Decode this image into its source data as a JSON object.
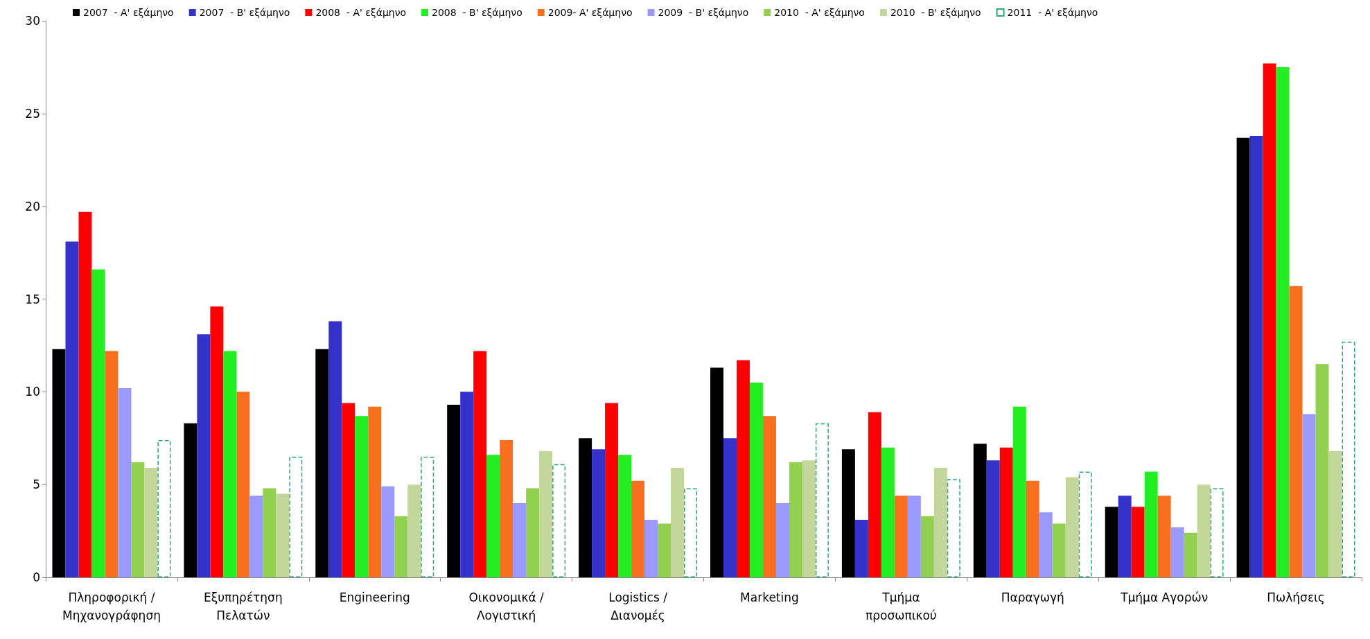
{
  "chart_data": {
    "type": "bar",
    "categories": [
      "Πληροφορική / Μηχανογράφηση",
      "Εξυπηρέτηση Πελατών",
      "Engineering",
      "Οικονομικά / Λογιστική",
      "Logistics / Διανομές",
      "Marketing",
      "Τμήμα προσωπικού",
      "Παραγωγή",
      "Τμήμα Αγορών",
      "Πωλήσεις"
    ],
    "series": [
      {
        "name": "2007  - Α' εξάμηνο",
        "color": "#000000",
        "values": [
          12.3,
          8.3,
          12.3,
          9.3,
          7.5,
          11.3,
          6.9,
          7.2,
          3.8,
          23.7
        ]
      },
      {
        "name": "2007  - Β' εξάμηνο",
        "color": "#3333cc",
        "values": [
          18.1,
          13.1,
          13.8,
          10.0,
          6.9,
          7.5,
          3.1,
          6.3,
          4.4,
          23.8
        ]
      },
      {
        "name": "2008  - Α' εξάμηνο",
        "color": "#ff0000",
        "values": [
          19.7,
          14.6,
          9.4,
          12.2,
          9.4,
          11.7,
          8.9,
          7.0,
          3.8,
          27.7
        ]
      },
      {
        "name": "2008  - Β' εξάμηνο",
        "color": "#22ee22",
        "values": [
          16.6,
          12.2,
          8.7,
          6.6,
          6.6,
          10.5,
          7.0,
          9.2,
          5.7,
          27.5
        ]
      },
      {
        "name": "2009- Α' εξάμηνο",
        "color": "#f86f1e",
        "values": [
          12.2,
          10.0,
          9.2,
          7.4,
          5.2,
          8.7,
          4.4,
          5.2,
          4.4,
          15.7
        ]
      },
      {
        "name": "2009  - Β' εξάμηνο",
        "color": "#9999ff",
        "values": [
          10.2,
          4.4,
          4.9,
          4.0,
          3.1,
          4.0,
          4.4,
          3.5,
          2.7,
          8.8
        ]
      },
      {
        "name": "2010  - Α' εξάμηνο",
        "color": "#92d050",
        "values": [
          6.2,
          4.8,
          3.3,
          4.8,
          2.9,
          6.2,
          3.3,
          2.9,
          2.4,
          11.5
        ]
      },
      {
        "name": "2010  - Β' εξάμηνο",
        "color": "#c4d79b",
        "values": [
          5.9,
          4.5,
          5.0,
          6.8,
          5.9,
          6.3,
          5.9,
          5.4,
          5.0,
          6.8
        ]
      },
      {
        "name": "2011  - Α' εξάμηνο",
        "color": "#2ea878",
        "line_style": "dashed",
        "values": [
          7.4,
          6.5,
          6.5,
          6.1,
          4.8,
          8.3,
          5.3,
          5.7,
          4.8,
          12.7
        ]
      }
    ],
    "ylim": [
      0,
      30
    ],
    "yticks": [
      0,
      5,
      10,
      15,
      20,
      25,
      30
    ],
    "grid": false,
    "legend": "top left"
  }
}
